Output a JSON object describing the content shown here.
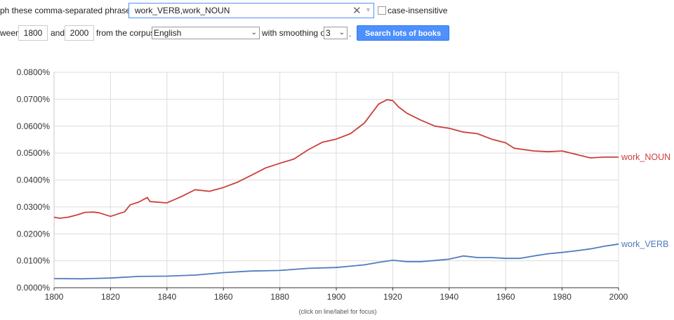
{
  "form": {
    "prefix_text": "ph these comma-separated phrases:",
    "query_value": "work_VERB,work_NOUN",
    "clear_glyph": "✕",
    "case_insensitive_label": "case-insensitive",
    "between_label": "ween",
    "start_year": "1800",
    "and_label": "and",
    "end_year": "2000",
    "corpus_label": "from the corpus",
    "corpus_value": "English",
    "smoothing_label": "with smoothing of",
    "smoothing_value": "3",
    "period": ".",
    "search_button": "Search lots of books"
  },
  "chart_data": {
    "type": "line",
    "xlim": [
      1800,
      2000
    ],
    "ylim": [
      0,
      0.08
    ],
    "x_ticks": [
      "1800",
      "1820",
      "1840",
      "1860",
      "1880",
      "1900",
      "1920",
      "1940",
      "1960",
      "1980",
      "2000"
    ],
    "y_ticks": [
      "0.0000%",
      "0.0100%",
      "0.0200%",
      "0.0300%",
      "0.0400%",
      "0.0500%",
      "0.0600%",
      "0.0700%",
      "0.0800%"
    ],
    "footnote": "(click on line/label for focus)",
    "grid": true,
    "series": [
      {
        "name": "work_NOUN",
        "color": "#cc3f3b",
        "x": [
          1800,
          1802,
          1805,
          1808,
          1811,
          1814,
          1816,
          1820,
          1825,
          1827,
          1830,
          1833,
          1834,
          1840,
          1845,
          1850,
          1855,
          1860,
          1865,
          1870,
          1875,
          1880,
          1885,
          1890,
          1895,
          1900,
          1905,
          1910,
          1915,
          1918,
          1920,
          1922,
          1925,
          1930,
          1935,
          1940,
          1945,
          1950,
          1955,
          1960,
          1963,
          1970,
          1975,
          1980,
          1985,
          1990,
          1995,
          2000
        ],
        "y": [
          0.0262,
          0.0258,
          0.0262,
          0.027,
          0.028,
          0.0281,
          0.0278,
          0.0265,
          0.0282,
          0.0308,
          0.0318,
          0.0335,
          0.032,
          0.0315,
          0.0338,
          0.0364,
          0.0358,
          0.0372,
          0.0392,
          0.0418,
          0.0445,
          0.0462,
          0.0478,
          0.0512,
          0.054,
          0.0552,
          0.0572,
          0.0612,
          0.0682,
          0.0698,
          0.0695,
          0.0672,
          0.0648,
          0.0622,
          0.06,
          0.0592,
          0.0578,
          0.0572,
          0.0552,
          0.0538,
          0.0518,
          0.0508,
          0.0505,
          0.0508,
          0.0495,
          0.0482,
          0.0485,
          0.0485
        ]
      },
      {
        "name": "work_VERB",
        "color": "#4f7cbf",
        "x": [
          1800,
          1810,
          1820,
          1830,
          1840,
          1850,
          1860,
          1870,
          1880,
          1890,
          1900,
          1910,
          1915,
          1920,
          1925,
          1930,
          1935,
          1940,
          1945,
          1950,
          1955,
          1960,
          1965,
          1970,
          1975,
          1980,
          1985,
          1990,
          1995,
          2000
        ],
        "y": [
          0.0034,
          0.0033,
          0.0036,
          0.0042,
          0.0043,
          0.0047,
          0.0056,
          0.0062,
          0.0064,
          0.0072,
          0.0075,
          0.0085,
          0.0094,
          0.0102,
          0.0097,
          0.0097,
          0.0101,
          0.0106,
          0.0118,
          0.0112,
          0.0112,
          0.0109,
          0.0109,
          0.0118,
          0.0126,
          0.0131,
          0.0137,
          0.0144,
          0.0154,
          0.0162
        ]
      }
    ]
  }
}
